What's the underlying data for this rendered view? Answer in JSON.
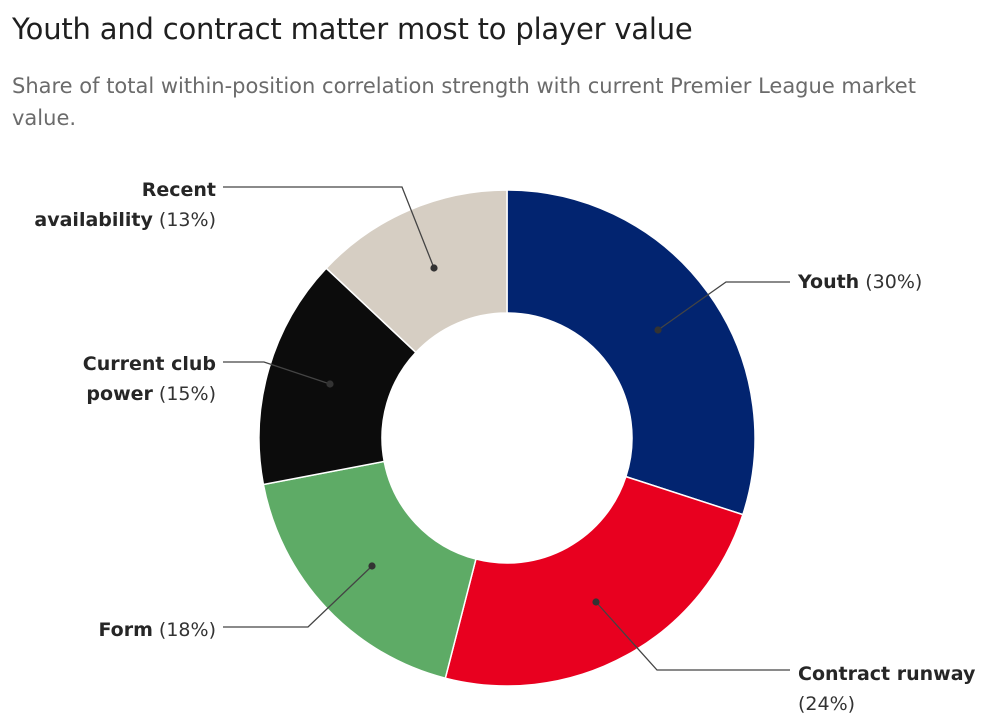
{
  "title": "Youth and contract matter most to player value",
  "subtitle": "Share of total within-position correlation strength with current Premier League market value.",
  "chart_data": {
    "type": "pie",
    "donut": true,
    "slices": [
      {
        "id": "youth",
        "label": "Youth",
        "pct_text": "(30%)",
        "value": 30,
        "color": "#022470"
      },
      {
        "id": "contract-runway",
        "label": "Contract runway",
        "pct_text": "(24%)",
        "value": 24,
        "color": "#e8001f"
      },
      {
        "id": "form",
        "label": "Form",
        "pct_text": "(18%)",
        "value": 18,
        "color": "#5eab66"
      },
      {
        "id": "current-club-power",
        "label": "Current club power",
        "pct_text": "(15%)",
        "value": 15,
        "color": "#0c0c0c"
      },
      {
        "id": "recent-availability",
        "label": "Recent availability",
        "pct_text": "(13%)",
        "value": 13,
        "color": "#d6cec3"
      }
    ]
  }
}
